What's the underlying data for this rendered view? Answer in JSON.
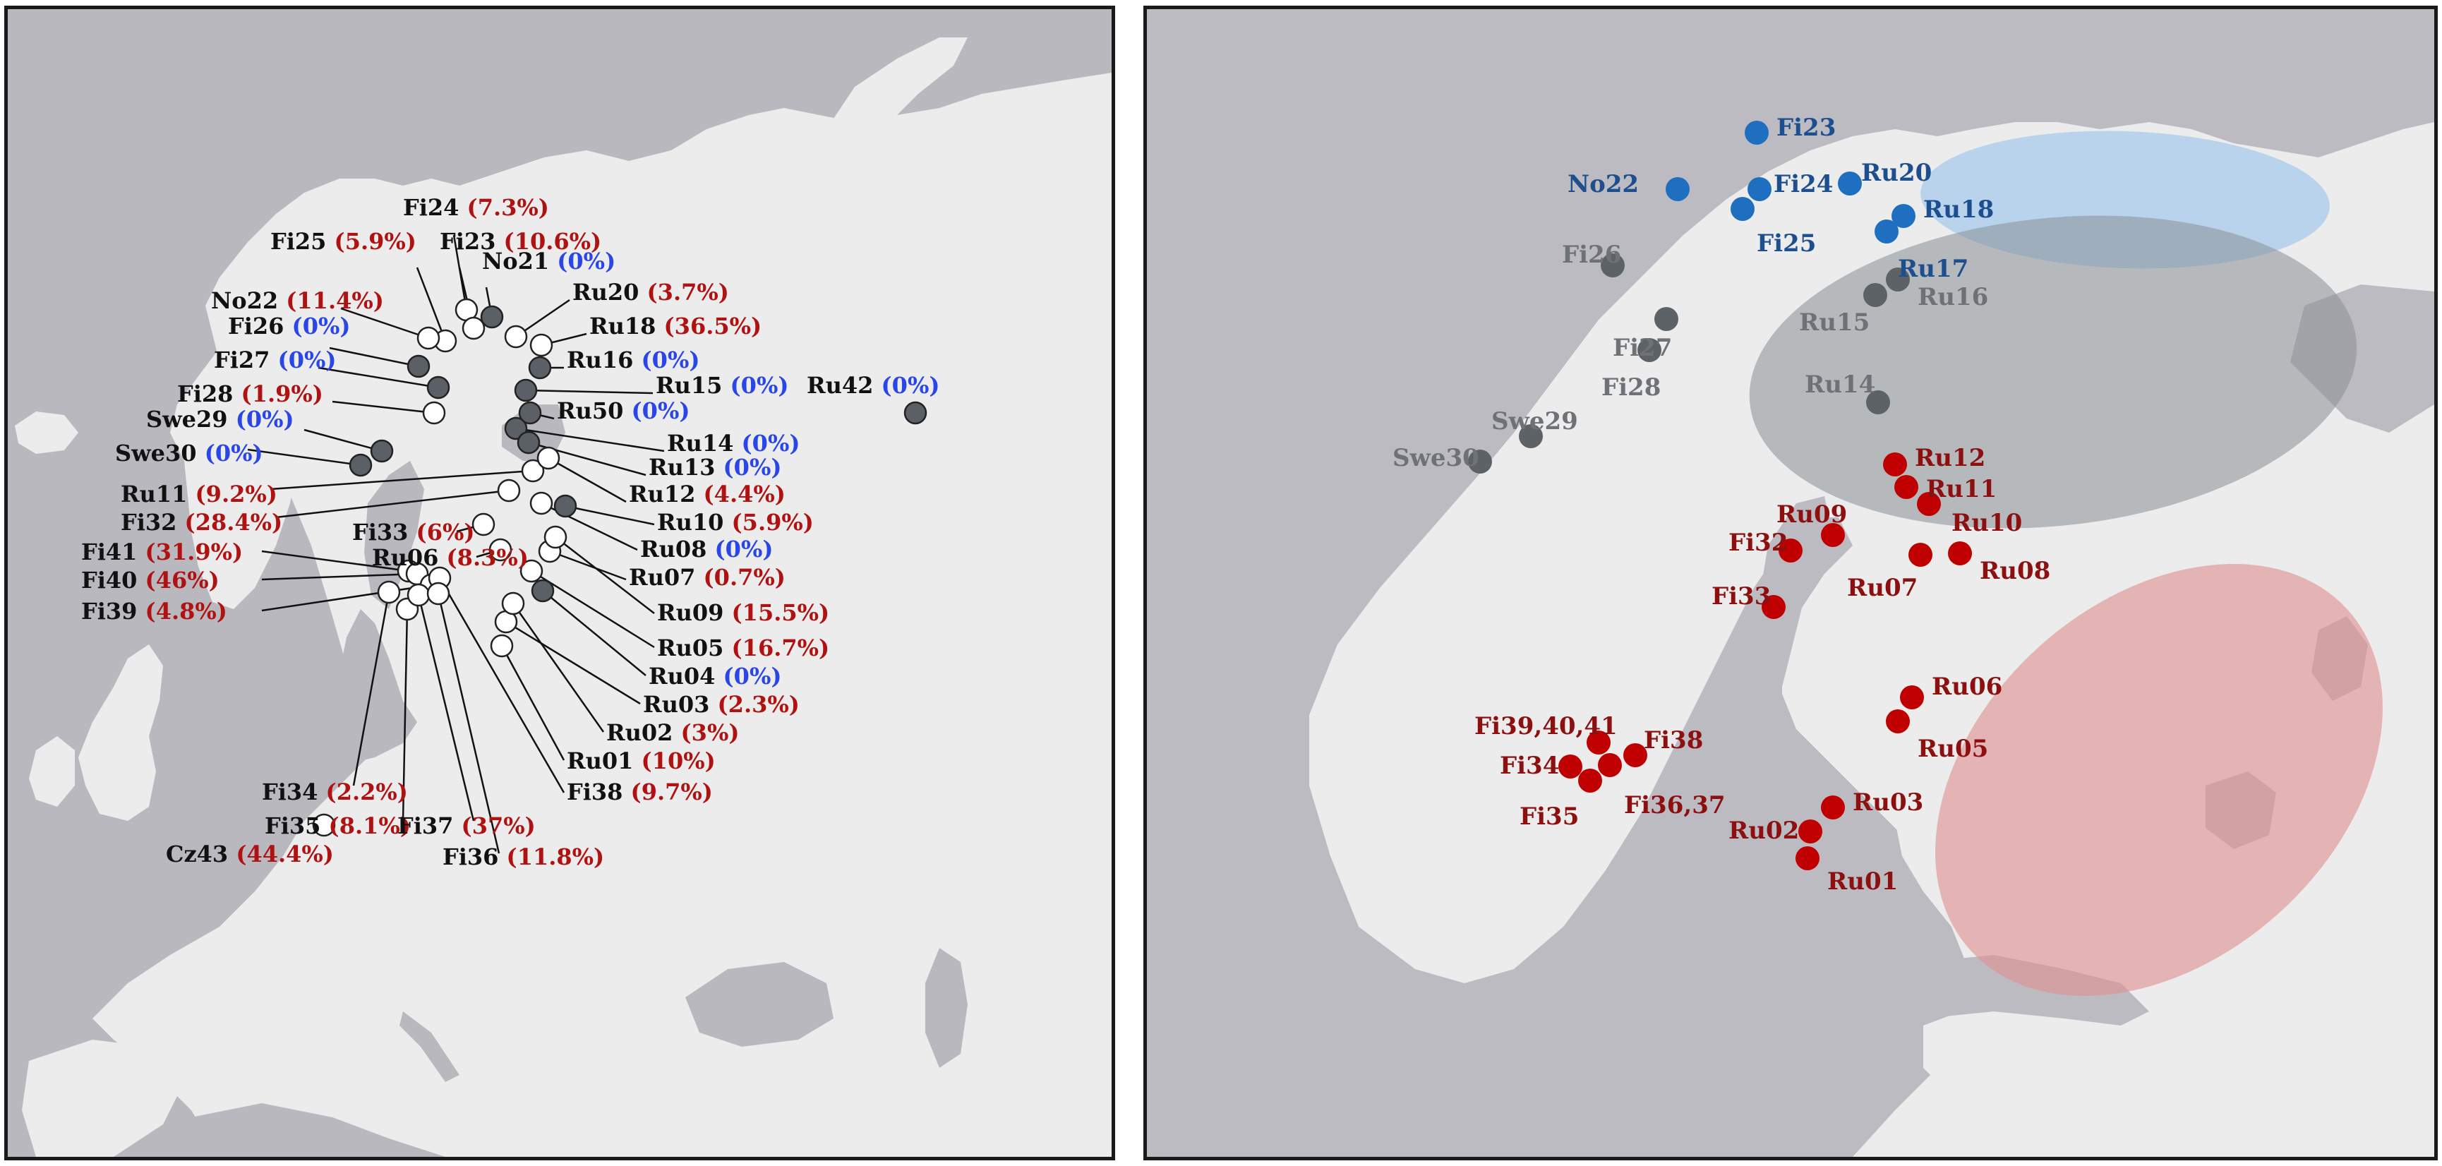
{
  "colors": {
    "sea": "#bdbcc2",
    "land": "#eeeeee",
    "open_dot": "#ffffff",
    "filled_dot": "#5a6066",
    "red_text": "#b01212",
    "blue_text": "#2a46e8",
    "blue_dot": "#1f6fc0",
    "gray_dot": "#5d6266",
    "red_dot": "#c00000",
    "blue_label": "#1d4f8f",
    "gray_label": "#6e7276",
    "red_label": "#8c1010",
    "blue_ellipse": "#9cc6ef",
    "gray_ellipse": "#9a9ea3",
    "red_ellipse": "#e29a9a"
  },
  "left_map": {
    "sites": [
      {
        "name": "Fi24",
        "value": "(7.3%)",
        "tone": "red"
      },
      {
        "name": "Fi25",
        "value": "(5.9%)",
        "tone": "red"
      },
      {
        "name": "Fi23",
        "value": "(10.6%)",
        "tone": "red"
      },
      {
        "name": "No21",
        "value": "(0%)",
        "tone": "blue"
      },
      {
        "name": "No22",
        "value": "(11.4%)",
        "tone": "red"
      },
      {
        "name": "Ru20",
        "value": "(3.7%)",
        "tone": "red"
      },
      {
        "name": "Ru18",
        "value": "(36.5%)",
        "tone": "red"
      },
      {
        "name": "Fi26",
        "value": "(0%)",
        "tone": "blue"
      },
      {
        "name": "Fi27",
        "value": "(0%)",
        "tone": "blue"
      },
      {
        "name": "Ru16",
        "value": "(0%)",
        "tone": "blue"
      },
      {
        "name": "Fi28",
        "value": "(1.9%)",
        "tone": "red"
      },
      {
        "name": "Ru15",
        "value": "(0%)",
        "tone": "blue"
      },
      {
        "name": "Ru42",
        "value": "(0%)",
        "tone": "blue"
      },
      {
        "name": "Swe29",
        "value": "(0%)",
        "tone": "blue"
      },
      {
        "name": "Ru50",
        "value": "(0%)",
        "tone": "blue"
      },
      {
        "name": "Swe30",
        "value": "(0%)",
        "tone": "blue"
      },
      {
        "name": "Ru14",
        "value": "(0%)",
        "tone": "blue"
      },
      {
        "name": "Ru13",
        "value": "(0%)",
        "tone": "blue"
      },
      {
        "name": "Ru11",
        "value": "(9.2%)",
        "tone": "red"
      },
      {
        "name": "Ru12",
        "value": "(4.4%)",
        "tone": "red"
      },
      {
        "name": "Fi32",
        "value": "(28.4%)",
        "tone": "red"
      },
      {
        "name": "Ru10",
        "value": "(5.9%)",
        "tone": "red"
      },
      {
        "name": "Fi33",
        "value": "(6%)",
        "tone": "red"
      },
      {
        "name": "Ru08",
        "value": "(0%)",
        "tone": "blue"
      },
      {
        "name": "Fi41",
        "value": "(31.9%)",
        "tone": "red"
      },
      {
        "name": "Ru06",
        "value": "(8.3%)",
        "tone": "red"
      },
      {
        "name": "Ru07",
        "value": "(0.7%)",
        "tone": "red"
      },
      {
        "name": "Fi40",
        "value": "(46%)",
        "tone": "red"
      },
      {
        "name": "Ru09",
        "value": "(15.5%)",
        "tone": "red"
      },
      {
        "name": "Fi39",
        "value": "(4.8%)",
        "tone": "red"
      },
      {
        "name": "Ru05",
        "value": "(16.7%)",
        "tone": "red"
      },
      {
        "name": "Ru04",
        "value": "(0%)",
        "tone": "blue"
      },
      {
        "name": "Ru03",
        "value": "(2.3%)",
        "tone": "red"
      },
      {
        "name": "Ru02",
        "value": "(3%)",
        "tone": "red"
      },
      {
        "name": "Ru01",
        "value": "(10%)",
        "tone": "red"
      },
      {
        "name": "Fi34",
        "value": "(2.2%)",
        "tone": "red"
      },
      {
        "name": "Fi38",
        "value": "(9.7%)",
        "tone": "red"
      },
      {
        "name": "Fi35",
        "value": "(8.1%)",
        "tone": "red"
      },
      {
        "name": "Fi37",
        "value": "(37%)",
        "tone": "red"
      },
      {
        "name": "Cz43",
        "value": "(44.4%)",
        "tone": "red"
      },
      {
        "name": "Fi36",
        "value": "(11.8%)",
        "tone": "red"
      }
    ]
  },
  "right_map": {
    "groups": [
      {
        "group": "blue",
        "labels": [
          "Fi23",
          "No22",
          "Fi24",
          "Ru20",
          "Ru18",
          "Fi25",
          "Ru17"
        ]
      },
      {
        "group": "gray",
        "labels": [
          "Fi26",
          "Ru16",
          "Fi27",
          "Ru15",
          "Fi28",
          "Ru14",
          "Swe29",
          "Swe30"
        ]
      },
      {
        "group": "red",
        "labels": [
          "Ru12",
          "Ru11",
          "Ru09",
          "Ru10",
          "Fi32",
          "Ru07",
          "Ru08",
          "Fi33",
          "Ru06",
          "Fi39,40,41",
          "Fi38",
          "Ru05",
          "Fi34",
          "Fi36,37",
          "Ru03",
          "Fi35",
          "Ru02",
          "Ru01"
        ]
      }
    ]
  }
}
